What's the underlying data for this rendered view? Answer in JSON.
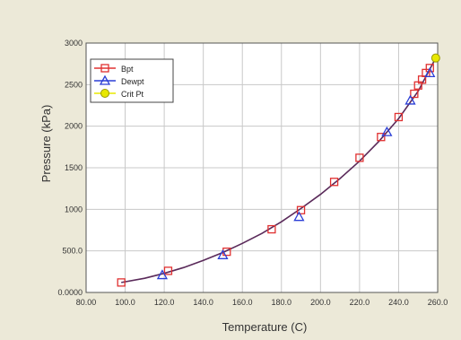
{
  "colors": {
    "background": "#ece9d8",
    "plot_background": "#ffffff",
    "grid": "#c8c8c8",
    "curve": "#5a2a5a",
    "bubble_point": "#e03030",
    "dew_point": "#2b3fd6",
    "critical_point": "#e8e800"
  },
  "chart_data": {
    "type": "line",
    "title": "",
    "xlabel": "Temperature (C)",
    "ylabel": "Pressure (kPa)",
    "xlim": [
      80,
      260
    ],
    "ylim": [
      0,
      3000
    ],
    "x_ticks": [
      "80.00",
      "100.0",
      "120.0",
      "140.0",
      "160.0",
      "180.0",
      "200.0",
      "220.0",
      "240.0",
      "260.0"
    ],
    "y_ticks": [
      "0.0000",
      "500.0",
      "1000",
      "1500",
      "2000",
      "2500",
      "3000"
    ],
    "grid": true,
    "legend_position": "top-left",
    "series": [
      {
        "name": "Bpt",
        "marker": "square",
        "x": [
          98,
          122,
          152,
          175,
          190,
          207,
          220,
          231,
          240,
          248,
          250,
          252,
          254,
          256
        ],
        "y": [
          120,
          260,
          490,
          760,
          990,
          1330,
          1620,
          1870,
          2110,
          2390,
          2490,
          2560,
          2640,
          2700
        ]
      },
      {
        "name": "Dewpt",
        "marker": "triangle",
        "x": [
          119,
          150,
          189,
          234,
          246,
          256
        ],
        "y": [
          210,
          450,
          910,
          1930,
          2310,
          2640
        ]
      },
      {
        "name": "Crit Pt",
        "marker": "circle",
        "x": [
          259
        ],
        "y": [
          2820
        ]
      }
    ],
    "curve": {
      "x": [
        98,
        110,
        120,
        130,
        140,
        150,
        160,
        170,
        180,
        190,
        200,
        210,
        220,
        230,
        240,
        250,
        259
      ],
      "y": [
        120,
        170,
        230,
        300,
        385,
        480,
        590,
        710,
        850,
        1010,
        1180,
        1370,
        1580,
        1820,
        2090,
        2420,
        2820
      ]
    }
  }
}
